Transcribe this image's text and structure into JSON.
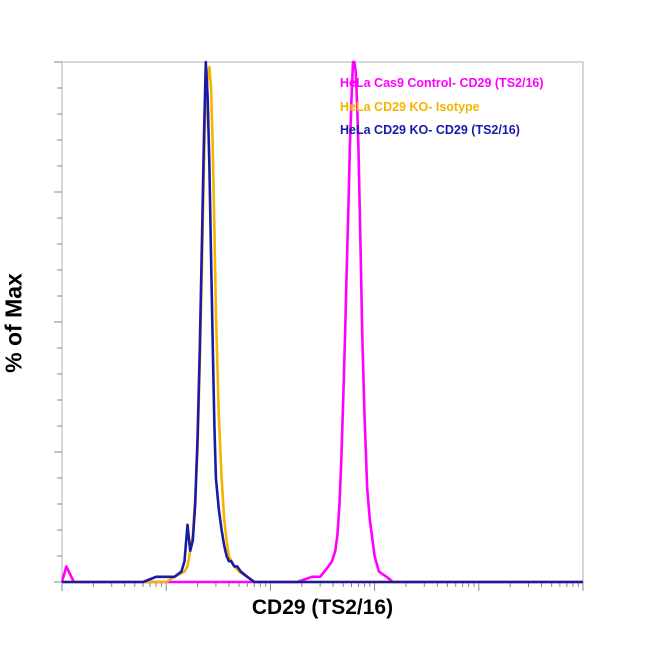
{
  "chart_data": {
    "type": "line",
    "title": "",
    "xlabel": "CD29 (TS2/16)",
    "ylabel": "% of Max",
    "xscale": "log",
    "xlim": [
      1,
      100000
    ],
    "ylim": [
      0,
      100
    ],
    "grid": false,
    "legend": "top-right",
    "series": [
      {
        "name": "HeLa Cas9 Control- CD29 (TS2/16)",
        "color": "#ff00ff",
        "x": [
          1,
          1.1,
          1.3,
          10,
          100,
          180,
          250,
          300,
          330,
          360,
          390,
          420,
          440,
          460,
          480,
          500,
          520,
          540,
          560,
          580,
          600,
          620,
          640,
          660,
          680,
          700,
          720,
          740,
          760,
          800,
          850,
          900,
          1000,
          1100,
          1300,
          1500,
          2000,
          100000
        ],
        "y": [
          0,
          3,
          0,
          0,
          0,
          0,
          1,
          1,
          2,
          3,
          4,
          6,
          9,
          15,
          24,
          35,
          47,
          60,
          72,
          84,
          93,
          100,
          100,
          98,
          92,
          83,
          72,
          60,
          48,
          32,
          18,
          12,
          5,
          2,
          1,
          0,
          0,
          0
        ]
      },
      {
        "name": "HeLa CD29 KO- Isotype",
        "color": "#f5b400",
        "x": [
          1,
          10,
          12,
          15,
          16,
          17,
          18,
          19,
          20,
          21,
          22,
          23,
          24,
          25,
          26,
          27,
          28,
          29,
          30,
          32,
          34,
          36,
          38,
          40,
          45,
          50,
          60,
          70,
          80,
          100000
        ],
        "y": [
          0,
          0,
          1,
          2,
          3,
          6,
          9,
          16,
          26,
          42,
          60,
          80,
          93,
          97,
          99,
          95,
          83,
          68,
          52,
          32,
          20,
          12,
          8,
          5,
          3,
          2,
          1,
          0,
          0,
          0
        ]
      },
      {
        "name": "HeLa CD29 KO- CD29 (TS2/16)",
        "color": "#1a1aa8",
        "x": [
          1,
          6,
          8,
          12,
          14,
          15,
          16,
          17,
          18,
          19,
          20,
          21,
          22,
          23,
          24,
          25,
          26,
          27,
          28,
          29,
          30,
          32,
          34,
          36,
          38,
          40,
          42,
          45,
          48,
          52,
          60,
          70,
          100000
        ],
        "y": [
          0,
          0,
          1,
          1,
          2,
          4,
          11,
          6,
          8,
          15,
          28,
          45,
          65,
          85,
          100,
          93,
          80,
          62,
          45,
          30,
          20,
          14,
          10,
          7,
          5,
          4,
          4,
          3,
          3,
          2,
          1,
          0,
          0
        ]
      }
    ]
  }
}
